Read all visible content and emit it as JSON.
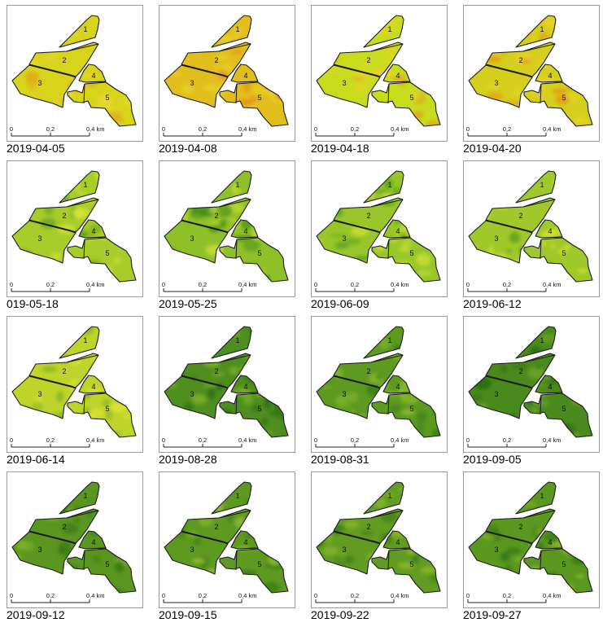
{
  "scale_bar": {
    "tick0": "0",
    "tick1": "0,2",
    "tick2": "0,4 km"
  },
  "field_labels": [
    "1",
    "2",
    "3",
    "4",
    "5"
  ],
  "panels": [
    {
      "date": "2019-04-05",
      "palette": {
        "base": "#d8d41c",
        "dark": "#e0a21a",
        "light": "#ead830"
      }
    },
    {
      "date": "2019-04-08",
      "palette": {
        "base": "#e2be1c",
        "dark": "#e28a1a",
        "light": "#e6d42a"
      }
    },
    {
      "date": "2019-04-18",
      "palette": {
        "base": "#c8dc1e",
        "dark": "#e2a41c",
        "light": "#e8d22a"
      }
    },
    {
      "date": "2019-04-20",
      "palette": {
        "base": "#d6ce1c",
        "dark": "#e4981a",
        "light": "#ead42c"
      }
    },
    {
      "date": "019-05-18",
      "palette": {
        "base": "#a8cc2a",
        "dark": "#5a9a1c",
        "light": "#d6e436"
      }
    },
    {
      "date": "2019-05-25",
      "palette": {
        "base": "#90c028",
        "dark": "#3e8a18",
        "light": "#c8de36"
      }
    },
    {
      "date": "2019-06-09",
      "palette": {
        "base": "#98c62a",
        "dark": "#4e9a1c",
        "light": "#cce036"
      }
    },
    {
      "date": "2019-06-12",
      "palette": {
        "base": "#a0c82a",
        "dark": "#55981c",
        "light": "#d2e036"
      }
    },
    {
      "date": "2019-06-14",
      "palette": {
        "base": "#bed42a",
        "dark": "#78ac22",
        "light": "#e0e636"
      }
    },
    {
      "date": "2019-08-28",
      "palette": {
        "base": "#4e8e1e",
        "dark": "#2e6e14",
        "light": "#7eb02a"
      }
    },
    {
      "date": "2019-08-31",
      "palette": {
        "base": "#5c9a20",
        "dark": "#347616",
        "light": "#8aba2c"
      }
    },
    {
      "date": "2019-09-05",
      "palette": {
        "base": "#4a8a1c",
        "dark": "#2c6a12",
        "light": "#78aa28"
      }
    },
    {
      "date": "2019-09-12",
      "palette": {
        "base": "#5a9620",
        "dark": "#357414",
        "light": "#86b42a"
      }
    },
    {
      "date": "2019-09-15",
      "palette": {
        "base": "#5e9a22",
        "dark": "#357614",
        "light": "#9ac230"
      }
    },
    {
      "date": "2019-09-22",
      "palette": {
        "base": "#629c22",
        "dark": "#3a7a16",
        "light": "#8ebc2c"
      }
    },
    {
      "date": "2019-09-27",
      "palette": {
        "base": "#5a9820",
        "dark": "#347414",
        "light": "#8cba2c"
      }
    }
  ]
}
